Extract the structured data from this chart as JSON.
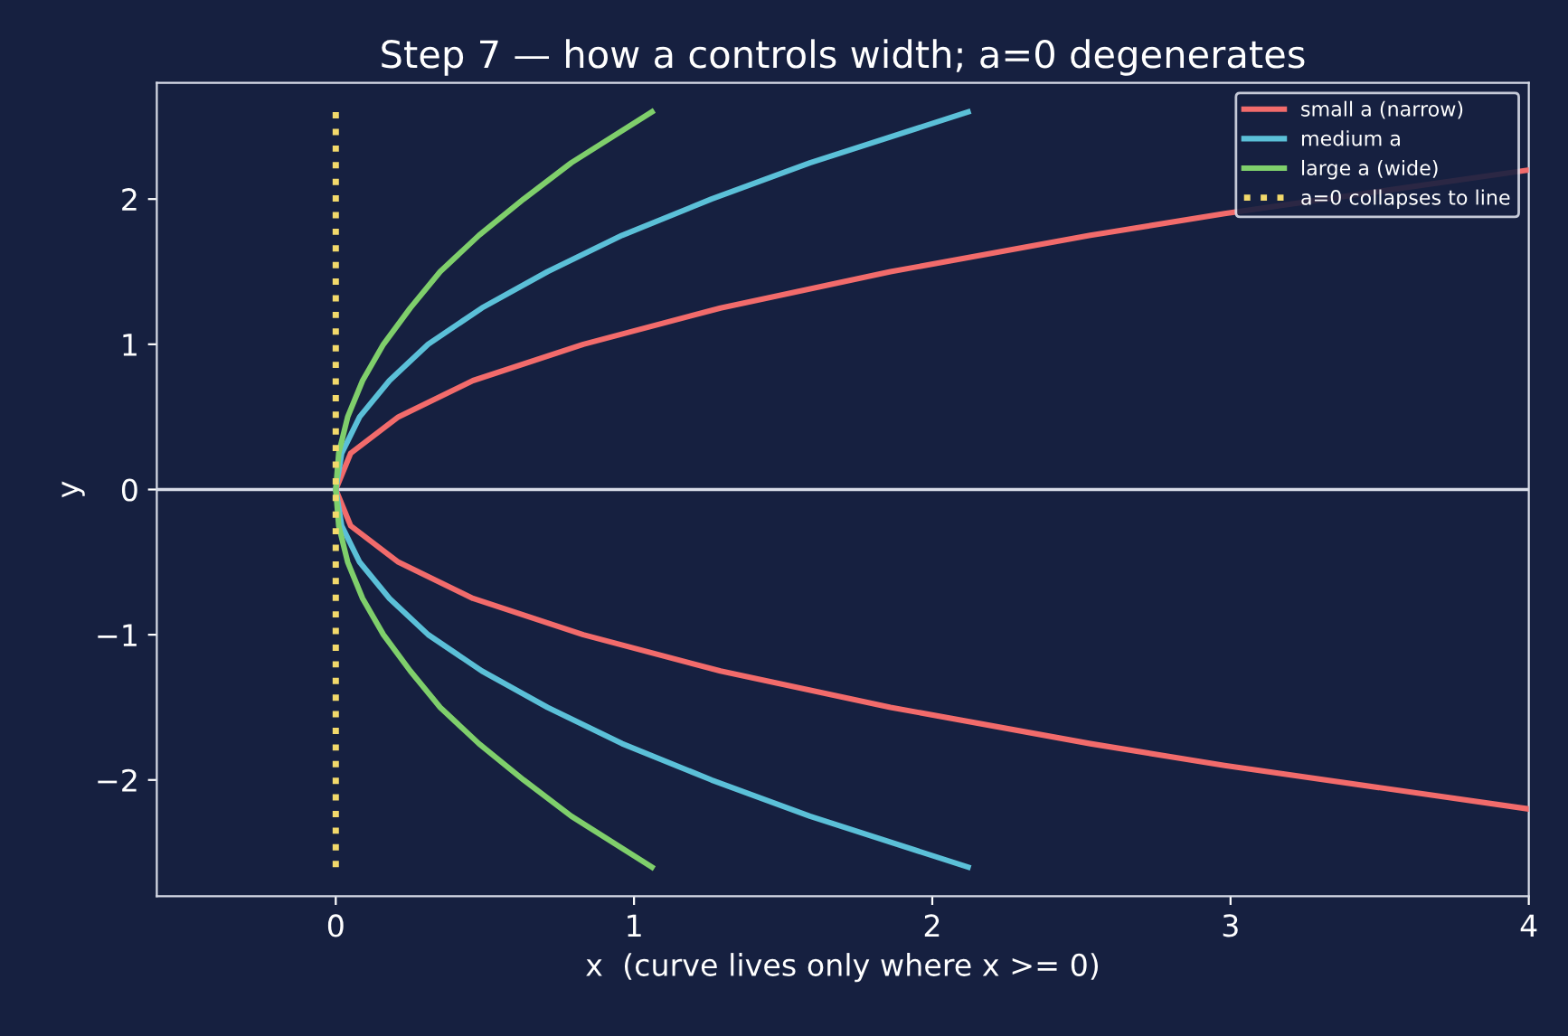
{
  "chart_data": {
    "type": "line",
    "title": "Step 7 — how a controls width; a=0 degenerates",
    "xlabel": "x  (curve lives only where x >= 0)",
    "ylabel": "y",
    "series": [
      {
        "name": "small a (narrow)",
        "color": "#f26b6b",
        "x": [
          4.0,
          2.98,
          2.53,
          1.86,
          1.29,
          0.83,
          0.46,
          0.21,
          0.05,
          0,
          0.05,
          0.21,
          0.46,
          0.83,
          1.29,
          1.86,
          2.53,
          2.98,
          4.0
        ],
        "values": [
          -2.2,
          -1.9,
          -1.75,
          -1.5,
          -1.25,
          -1.0,
          -0.75,
          -0.5,
          -0.25,
          0,
          0.25,
          0.5,
          0.75,
          1.0,
          1.25,
          1.5,
          1.75,
          1.9,
          2.2
        ]
      },
      {
        "name": "medium a",
        "color": "#5bc0d8",
        "x": [
          2.12,
          1.59,
          1.26,
          0.96,
          0.71,
          0.49,
          0.31,
          0.18,
          0.08,
          0.02,
          0,
          0.02,
          0.08,
          0.18,
          0.31,
          0.49,
          0.71,
          0.96,
          1.26,
          1.59,
          2.12
        ],
        "values": [
          -2.6,
          -2.25,
          -2.0,
          -1.75,
          -1.5,
          -1.25,
          -1.0,
          -0.75,
          -0.5,
          -0.25,
          0,
          0.25,
          0.5,
          0.75,
          1.0,
          1.25,
          1.5,
          1.75,
          2.0,
          2.25,
          2.6
        ]
      },
      {
        "name": "large a (wide)",
        "color": "#7fcf6b",
        "x": [
          1.06,
          0.79,
          0.63,
          0.48,
          0.35,
          0.25,
          0.16,
          0.09,
          0.04,
          0.01,
          0,
          0.01,
          0.04,
          0.09,
          0.16,
          0.25,
          0.35,
          0.48,
          0.63,
          0.79,
          1.06
        ],
        "values": [
          -2.6,
          -2.25,
          -2.0,
          -1.75,
          -1.5,
          -1.25,
          -1.0,
          -0.75,
          -0.5,
          -0.25,
          0,
          0.25,
          0.5,
          0.75,
          1.0,
          1.25,
          1.5,
          1.75,
          2.0,
          2.25,
          2.6
        ]
      },
      {
        "name": "a=0 collapses to line",
        "color": "#f2d96b",
        "line_style": "dotted",
        "x": [
          0,
          0
        ],
        "values": [
          -2.6,
          2.6
        ]
      }
    ],
    "ref_lines": [
      {
        "axis": "y",
        "value": 0,
        "color": "#d8dce8"
      }
    ],
    "xlim": [
      -0.6,
      4
    ],
    "ylim": [
      -2.8,
      2.8
    ],
    "xticks": [
      0,
      1,
      2,
      3,
      4
    ],
    "yticks": [
      {
        "value": -2,
        "label": "−2"
      },
      {
        "value": -1,
        "label": "−1"
      },
      0,
      1,
      2
    ],
    "legend": "top right",
    "grid": false,
    "line_style": "solid",
    "marker": "none"
  }
}
